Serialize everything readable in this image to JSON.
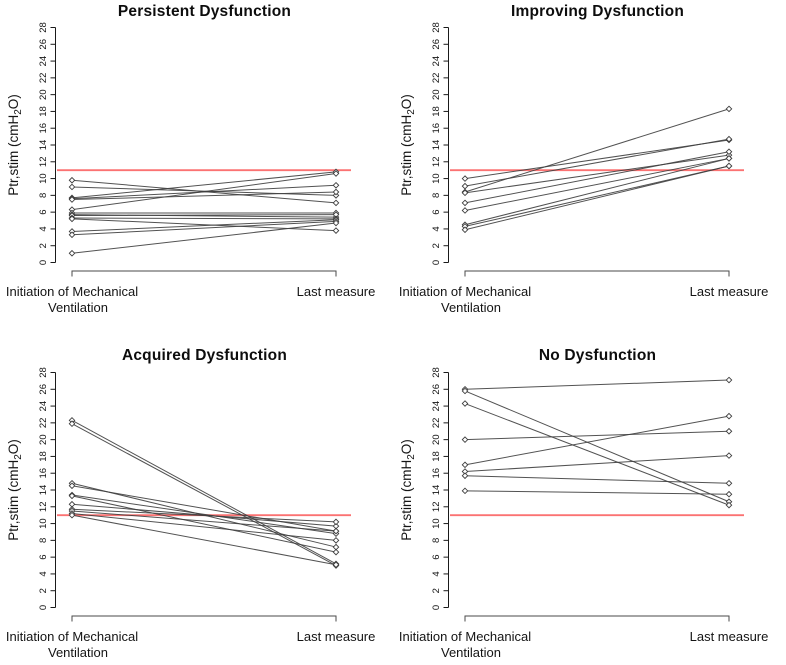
{
  "figure": {
    "ylabel": {
      "pre": "Ptr,stim (cmH",
      "sub": "2",
      "post": "O)"
    },
    "x_axis": {
      "left_label_line1": "Initiation of Mechanical",
      "left_label_line2": "Ventilation",
      "right_label": "Last measure"
    },
    "y_axis": {
      "min": 0,
      "max": 28,
      "step": 2
    },
    "reference_line": {
      "value": 11,
      "color": "#fb7272"
    },
    "style": {
      "line_color": "#3f3f3f",
      "marker_fill": "#ffffff",
      "axis_color": "#1a1a1a"
    }
  },
  "chart_data": [
    {
      "type": "line",
      "title": "Persistent Dysfunction",
      "categories": [
        "Initiation of Mechanical Ventilation",
        "Last measure"
      ],
      "ylabel": "Ptr,stim (cmH2O)",
      "ylim": [
        0,
        28
      ],
      "ytick_step": 2,
      "reference_line": 11,
      "legend": "none",
      "series": [
        [
          9.8,
          7.1
        ],
        [
          9.0,
          8.0
        ],
        [
          7.7,
          10.8
        ],
        [
          7.6,
          9.2
        ],
        [
          7.5,
          8.4
        ],
        [
          6.3,
          10.6
        ],
        [
          5.9,
          5.9
        ],
        [
          5.7,
          5.4
        ],
        [
          5.6,
          5.7
        ],
        [
          5.3,
          5.2
        ],
        [
          5.2,
          3.8
        ],
        [
          3.7,
          5.1
        ],
        [
          3.3,
          4.9
        ],
        [
          1.1,
          4.7
        ]
      ]
    },
    {
      "type": "line",
      "title": "Improving Dysfunction",
      "categories": [
        "Initiation of Mechanical Ventilation",
        "Last measure"
      ],
      "ylabel": "Ptr,stim (cmH2O)",
      "ylim": [
        0,
        28
      ],
      "ytick_step": 2,
      "reference_line": 11,
      "legend": "none",
      "series": [
        [
          10.0,
          14.6
        ],
        [
          9.1,
          14.7
        ],
        [
          8.4,
          18.3
        ],
        [
          8.3,
          12.8
        ],
        [
          7.1,
          13.2
        ],
        [
          6.2,
          12.4
        ],
        [
          4.5,
          12.4
        ],
        [
          4.3,
          11.5
        ],
        [
          3.9,
          11.5
        ]
      ]
    },
    {
      "type": "line",
      "title": "Acquired Dysfunction",
      "categories": [
        "Initiation of Mechanical Ventilation",
        "Last measure"
      ],
      "ylabel": "Ptr,stim (cmH2O)",
      "ylim": [
        0,
        28
      ],
      "ytick_step": 2,
      "reference_line": 11,
      "legend": "none",
      "series": [
        [
          22.3,
          5.2
        ],
        [
          21.9,
          5.0
        ],
        [
          14.8,
          7.2
        ],
        [
          14.5,
          9.1
        ],
        [
          13.4,
          8.8
        ],
        [
          13.3,
          6.6
        ],
        [
          12.3,
          9.7
        ],
        [
          11.7,
          10.2
        ],
        [
          11.5,
          9.1
        ],
        [
          11.2,
          8.0
        ],
        [
          11.0,
          5.1
        ]
      ]
    },
    {
      "type": "line",
      "title": "No Dysfunction",
      "categories": [
        "Initiation of Mechanical Ventilation",
        "Last measure"
      ],
      "ylabel": "Ptr,stim (cmH2O)",
      "ylim": [
        0,
        28
      ],
      "ytick_step": 2,
      "reference_line": 11,
      "legend": "none",
      "series": [
        [
          26.0,
          27.1
        ],
        [
          25.8,
          12.6
        ],
        [
          24.3,
          12.2
        ],
        [
          20.0,
          21.0
        ],
        [
          17.0,
          22.8
        ],
        [
          16.2,
          18.1
        ],
        [
          15.7,
          14.8
        ],
        [
          13.9,
          13.5
        ]
      ]
    }
  ]
}
